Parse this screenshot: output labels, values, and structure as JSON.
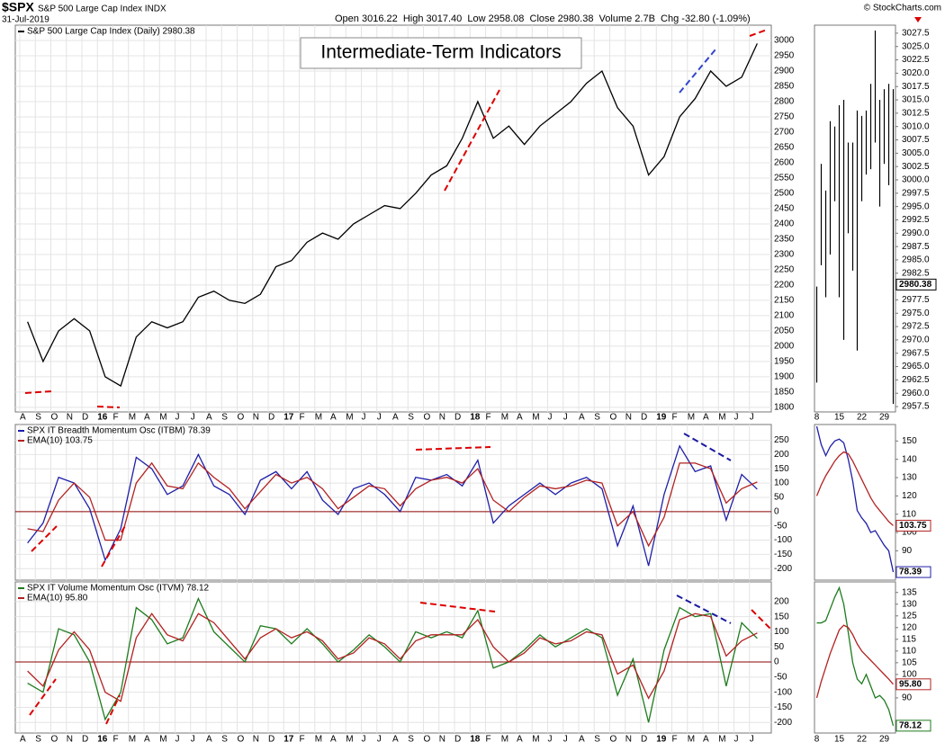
{
  "header": {
    "symbol": "$SPX",
    "name": "S&P 500 Large Cap Index INDX",
    "date": "31-Jul-2019",
    "quote": "Open 3016.22  High 3017.40  Low 2958.08  Close 2980.38  Volume 2.7B  Chg -32.80 (-1.09%)",
    "credit": "© StockCharts.com"
  },
  "chart_data": [
    {
      "type": "line",
      "title": "Intermediate-Term Indicators",
      "categories": [
        "A",
        "S",
        "O",
        "N",
        "D",
        "16",
        "F",
        "M",
        "A",
        "M",
        "J",
        "J",
        "A",
        "S",
        "O",
        "N",
        "D",
        "17",
        "F",
        "M",
        "A",
        "M",
        "J",
        "J",
        "A",
        "S",
        "O",
        "N",
        "D",
        "18",
        "F",
        "M",
        "A",
        "M",
        "J",
        "J",
        "A",
        "S",
        "O",
        "N",
        "D",
        "19",
        "F",
        "M",
        "A",
        "M",
        "J",
        "J"
      ],
      "series": [
        {
          "name": "S&P 500 Large Cap Index (Daily) 2980.38",
          "color": "#000000",
          "values": [
            2080,
            1950,
            2050,
            2090,
            2050,
            1900,
            1870,
            2030,
            2080,
            2060,
            2080,
            2160,
            2180,
            2150,
            2140,
            2170,
            2260,
            2280,
            2340,
            2370,
            2350,
            2400,
            2430,
            2460,
            2450,
            2500,
            2560,
            2590,
            2680,
            2800,
            2680,
            2720,
            2660,
            2720,
            2760,
            2800,
            2860,
            2900,
            2780,
            2720,
            2560,
            2620,
            2750,
            2810,
            2900,
            2850,
            2880,
            2990
          ]
        }
      ],
      "ylim": [
        1785,
        3050
      ],
      "yticks": [
        1800,
        1850,
        1900,
        1950,
        2000,
        2050,
        2100,
        2150,
        2200,
        2250,
        2300,
        2350,
        2400,
        2450,
        2500,
        2550,
        2600,
        2650,
        2700,
        2750,
        2800,
        2850,
        2900,
        2950,
        3000
      ],
      "grid": true
    },
    {
      "type": "line",
      "series": [
        {
          "name": "SPX IT Breadth Momentum Osc (ITBM) 78.39",
          "color": "#1f1fa8",
          "values": [
            -110,
            -40,
            120,
            100,
            10,
            -170,
            -60,
            190,
            150,
            60,
            90,
            200,
            90,
            60,
            -10,
            110,
            140,
            80,
            140,
            40,
            -10,
            80,
            100,
            60,
            0,
            120,
            110,
            130,
            90,
            180,
            -40,
            20,
            60,
            100,
            60,
            100,
            120,
            80,
            -120,
            20,
            -190,
            60,
            230,
            140,
            160,
            -30,
            130,
            78.39
          ]
        },
        {
          "name": "EMA(10) 103.75",
          "color": "#b22222",
          "values": [
            -60,
            -70,
            40,
            100,
            50,
            -100,
            -100,
            100,
            170,
            90,
            80,
            170,
            120,
            80,
            10,
            70,
            130,
            100,
            120,
            80,
            10,
            50,
            90,
            80,
            20,
            80,
            110,
            120,
            100,
            150,
            40,
            0,
            50,
            90,
            80,
            90,
            110,
            100,
            -50,
            0,
            -120,
            -20,
            170,
            170,
            150,
            30,
            80,
            103.75
          ]
        }
      ],
      "ylim": [
        -240,
        305
      ],
      "yticks": [
        -200,
        -150,
        -100,
        -50,
        0,
        50,
        100,
        150,
        200,
        250
      ],
      "grid": true
    },
    {
      "type": "line",
      "categories": [
        "A",
        "S",
        "O",
        "N",
        "D",
        "16",
        "F",
        "M",
        "A",
        "M",
        "J",
        "J",
        "A",
        "S",
        "O",
        "N",
        "D",
        "17",
        "F",
        "M",
        "A",
        "M",
        "J",
        "J",
        "A",
        "S",
        "O",
        "N",
        "D",
        "18",
        "F",
        "M",
        "A",
        "M",
        "J",
        "J",
        "A",
        "S",
        "O",
        "N",
        "D",
        "19",
        "F",
        "M",
        "A",
        "M",
        "J",
        "J"
      ],
      "series": [
        {
          "name": "SPX IT Volume Momentum Osc (ITVM) 78.12",
          "color": "#1e7b1e",
          "values": [
            -70,
            -100,
            110,
            90,
            0,
            -190,
            -100,
            180,
            140,
            60,
            80,
            210,
            100,
            50,
            0,
            120,
            110,
            60,
            110,
            60,
            0,
            40,
            90,
            50,
            0,
            100,
            80,
            100,
            80,
            170,
            -20,
            0,
            40,
            90,
            50,
            80,
            110,
            80,
            -110,
            10,
            -200,
            40,
            180,
            150,
            160,
            -80,
            130,
            78.12
          ]
        },
        {
          "name": "EMA(10) 95.80",
          "color": "#b22222",
          "values": [
            -30,
            -80,
            40,
            100,
            40,
            -100,
            -130,
            80,
            160,
            90,
            70,
            160,
            130,
            70,
            10,
            80,
            110,
            80,
            100,
            70,
            10,
            30,
            80,
            60,
            10,
            70,
            90,
            90,
            90,
            140,
            50,
            0,
            30,
            80,
            60,
            70,
            100,
            90,
            -40,
            -10,
            -120,
            -30,
            140,
            160,
            150,
            20,
            70,
            95.8
          ]
        }
      ],
      "ylim": [
        -235,
        265
      ],
      "yticks": [
        -200,
        -150,
        -100,
        -50,
        0,
        50,
        100,
        150,
        200
      ],
      "grid": true
    },
    {
      "type": "range",
      "categories": [
        "8",
        null,
        null,
        null,
        null,
        "15",
        null,
        null,
        null,
        null,
        "22",
        null,
        null,
        null,
        null,
        "29",
        null,
        null
      ],
      "low": [
        2962,
        2984,
        2978,
        2986,
        2996,
        2978,
        2970,
        2990,
        2983,
        2968,
        2996,
        3001,
        3002,
        3007,
        2995,
        3003,
        2999,
        2958
      ],
      "high": [
        2980,
        3003,
        2998,
        3011,
        3010,
        3014,
        3015,
        3007,
        3007,
        3013,
        3012,
        3013,
        3018,
        3028,
        3015,
        3017,
        3018,
        3017
      ],
      "color": "#000000",
      "tag": 2980.38,
      "ylim": [
        2956.5,
        3029
      ],
      "yticks": [
        2957.5,
        {
          "value": 2960,
          "label": "2960.0"
        },
        2962.5,
        {
          "value": 2965,
          "label": "2965.0"
        },
        2967.5,
        {
          "value": 2970,
          "label": "2970.0"
        },
        2972.5,
        {
          "value": 2975,
          "label": "2975.0"
        },
        2977.5,
        {
          "value": 2980,
          "label": "2980.0"
        },
        2982.5,
        {
          "value": 2985,
          "label": "2985.0"
        },
        2987.5,
        {
          "value": 2990,
          "label": "2990.0"
        },
        2992.5,
        {
          "value": 2995,
          "label": "2995.0"
        },
        2997.5,
        {
          "value": 3000,
          "label": "3000.0"
        },
        3002.5,
        {
          "value": 3005,
          "label": "3005.0"
        },
        3007.5,
        {
          "value": 3010,
          "label": "3010.0"
        },
        3012.5,
        {
          "value": 3015,
          "label": "3015.0"
        },
        3017.5,
        {
          "value": 3020,
          "label": "3020.0"
        },
        3022.5,
        {
          "value": 3025,
          "label": "3025.0"
        },
        3027.5
      ],
      "grid": false
    },
    {
      "type": "line",
      "series": [
        {
          "color": "#1f1fa8",
          "tag": 78.39,
          "values": [
            158,
            148,
            142,
            147,
            150,
            151,
            149,
            140,
            128,
            112,
            108,
            105,
            100,
            101,
            97,
            93,
            90,
            78.39
          ]
        },
        {
          "color": "#b22222",
          "tag": 103.75,
          "values": [
            120,
            126,
            131,
            135,
            139,
            142,
            144,
            143,
            139,
            134,
            129,
            124,
            119,
            115,
            112,
            109,
            106,
            103.75
          ]
        }
      ],
      "ylim": [
        74,
        159
      ],
      "yticks": [
        90,
        100,
        110,
        120,
        130,
        140,
        150
      ],
      "grid": false
    },
    {
      "type": "line",
      "categories": [
        "8",
        null,
        null,
        null,
        null,
        "15",
        null,
        null,
        null,
        null,
        "22",
        null,
        null,
        null,
        null,
        "29",
        null,
        null
      ],
      "series": [
        {
          "color": "#1e7b1e",
          "tag": 78.12,
          "values": [
            122,
            122,
            123,
            128,
            133,
            137,
            130,
            118,
            105,
            98,
            96,
            100,
            95,
            90,
            91,
            89,
            85,
            78.12
          ]
        },
        {
          "color": "#b22222",
          "tag": {
            "value": 95.8,
            "label": "95.80"
          },
          "values": [
            90,
            97,
            103,
            109,
            114,
            119,
            121,
            120,
            117,
            113,
            110,
            108,
            106,
            104,
            102,
            100,
            98,
            95.8
          ]
        }
      ],
      "ylim": [
        75,
        139.5
      ],
      "yticks": [
        90,
        95,
        100,
        105,
        110,
        115,
        120,
        125,
        130,
        135
      ],
      "grid": false
    }
  ]
}
